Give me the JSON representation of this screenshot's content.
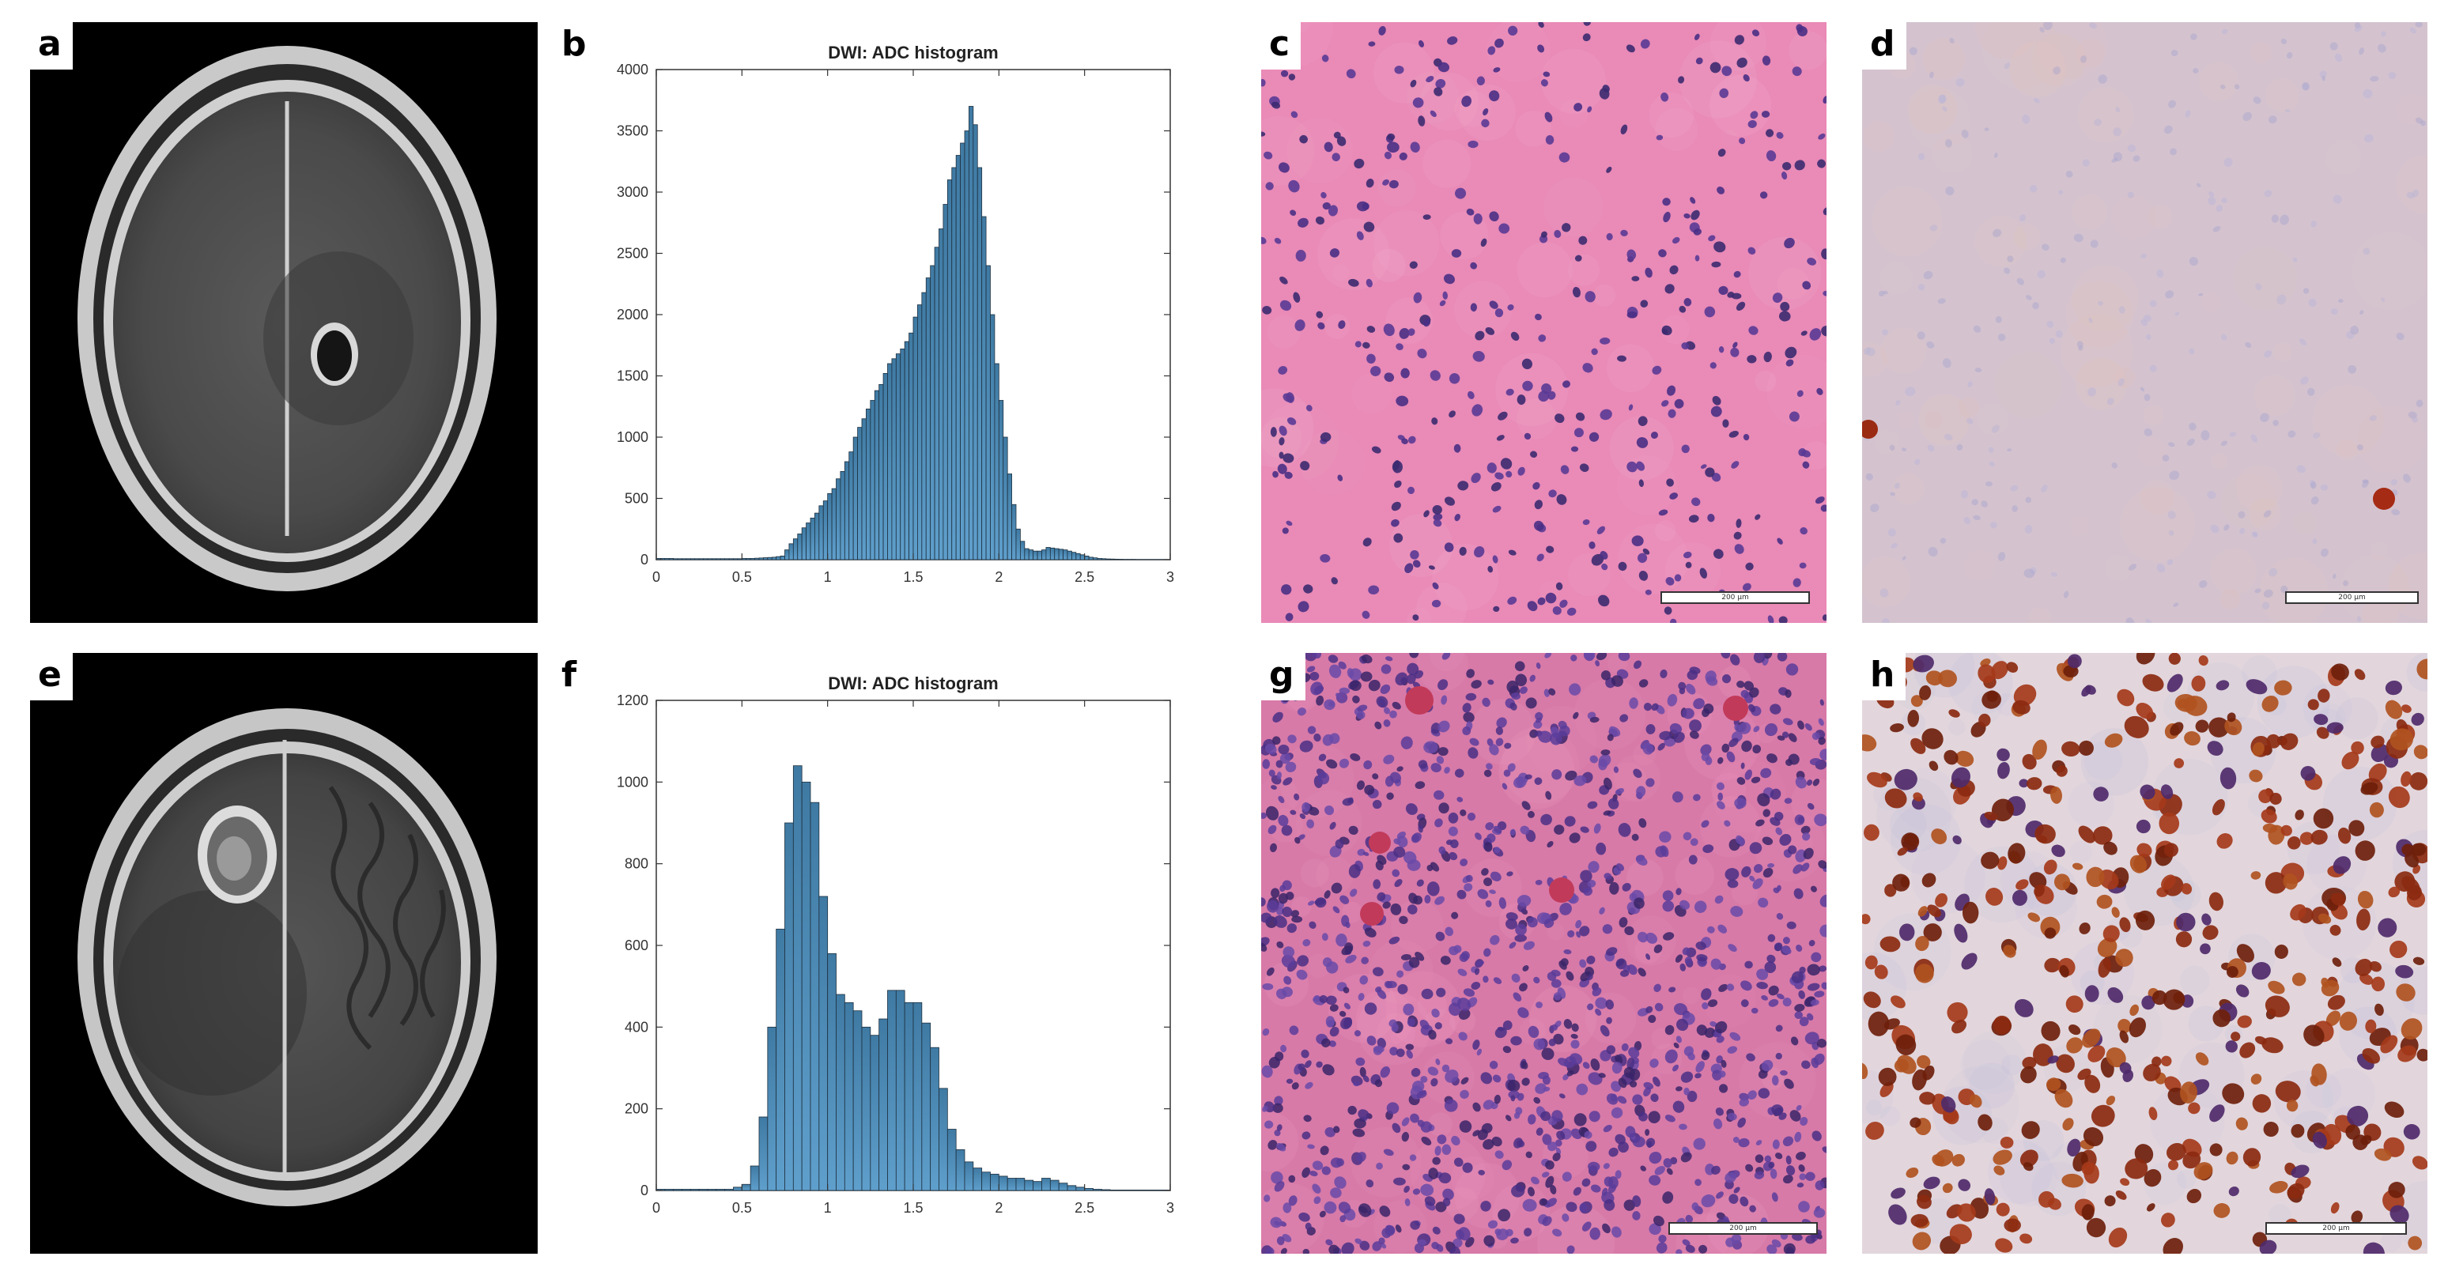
{
  "panels": {
    "a": {
      "letter": "a"
    },
    "b": {
      "letter": "b"
    },
    "c": {
      "letter": "c",
      "scalebar": "200 µm"
    },
    "d": {
      "letter": "d",
      "scalebar": "200 µm"
    },
    "e": {
      "letter": "e"
    },
    "f": {
      "letter": "f"
    },
    "g": {
      "letter": "g",
      "scalebar": "200 µm"
    },
    "h": {
      "letter": "h",
      "scalebar": "200 µm"
    }
  },
  "colors": {
    "bar_fill_top": "#3f7aa3",
    "bar_fill_bottom": "#5f9fcc",
    "he_pink": "#e98ab7",
    "he_nuclei": "#4a2f85",
    "ihc_bg": "#d4c3cf",
    "ihc_brown": "#8b2a10"
  },
  "chart_data": [
    {
      "type": "bar",
      "title": "DWI: ADC histogram",
      "xlim": [
        0,
        3
      ],
      "ylim": [
        0,
        4000
      ],
      "xticks": [
        "0",
        "0.5",
        "1",
        "1.5",
        "2",
        "2.5",
        "3"
      ],
      "yticks": [
        "0",
        "500",
        "1000",
        "1500",
        "2000",
        "2500",
        "3000",
        "3500",
        "4000"
      ],
      "bin_width": 0.025,
      "x_start": 0.0,
      "values": [
        10,
        10,
        10,
        10,
        8,
        8,
        8,
        8,
        8,
        8,
        8,
        8,
        8,
        8,
        8,
        8,
        8,
        8,
        8,
        8,
        10,
        10,
        10,
        12,
        14,
        16,
        18,
        20,
        25,
        30,
        80,
        130,
        170,
        210,
        260,
        300,
        340,
        380,
        440,
        480,
        540,
        580,
        660,
        720,
        800,
        880,
        1000,
        1080,
        1150,
        1230,
        1300,
        1380,
        1430,
        1520,
        1600,
        1640,
        1680,
        1720,
        1780,
        1850,
        1980,
        2080,
        2180,
        2300,
        2400,
        2550,
        2700,
        2900,
        3100,
        3200,
        3300,
        3400,
        3500,
        3700,
        3550,
        3200,
        2800,
        2400,
        2000,
        1600,
        1300,
        1000,
        700,
        450,
        250,
        150,
        90,
        80,
        70,
        70,
        80,
        100,
        95,
        90,
        85,
        80,
        70,
        60,
        50,
        40,
        30,
        20,
        15,
        10,
        8,
        6,
        5,
        4,
        3,
        2,
        2,
        2,
        1,
        1,
        1,
        1,
        1,
        1,
        1,
        1,
        1,
        1,
        1,
        1
      ]
    },
    {
      "type": "bar",
      "title": "DWI: ADC histogram",
      "xlim": [
        0,
        3
      ],
      "ylim": [
        0,
        1200
      ],
      "xticks": [
        "0",
        "0.5",
        "1",
        "1.5",
        "2",
        "2.5",
        "3"
      ],
      "yticks": [
        "0",
        "200",
        "400",
        "600",
        "800",
        "1000",
        "1200"
      ],
      "bin_width": 0.05,
      "x_start": 0.0,
      "values": [
        3,
        3,
        3,
        3,
        3,
        3,
        3,
        3,
        3,
        8,
        15,
        60,
        180,
        400,
        640,
        900,
        1040,
        1000,
        950,
        720,
        580,
        480,
        460,
        440,
        400,
        380,
        420,
        490,
        490,
        460,
        460,
        410,
        350,
        250,
        150,
        100,
        70,
        55,
        45,
        40,
        35,
        30,
        30,
        25,
        22,
        30,
        25,
        18,
        12,
        8,
        5,
        3,
        2,
        1,
        1,
        1,
        1,
        1,
        1,
        1
      ]
    }
  ]
}
